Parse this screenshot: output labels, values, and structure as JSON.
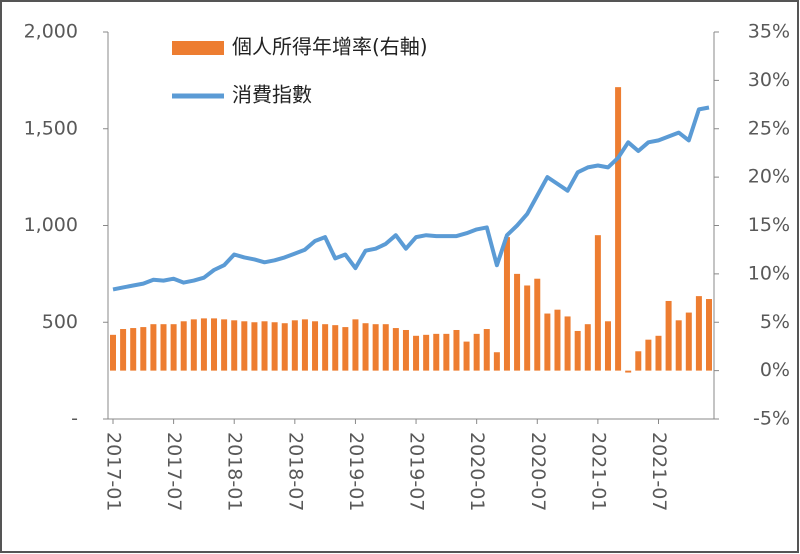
{
  "chart_data": {
    "type": "bar_line",
    "categories": [
      "2017-01",
      null,
      null,
      null,
      null,
      null,
      "2017-07",
      null,
      null,
      null,
      null,
      null,
      "2018-01",
      null,
      null,
      null,
      null,
      null,
      "2018-07",
      null,
      null,
      null,
      null,
      null,
      "2019-01",
      null,
      null,
      null,
      null,
      null,
      "2019-07",
      null,
      null,
      null,
      null,
      null,
      "2020-01",
      null,
      null,
      null,
      null,
      null,
      "2020-07",
      null,
      null,
      null,
      null,
      null,
      "2021-01",
      null,
      null,
      null,
      null,
      null,
      "2021-07",
      null,
      null,
      null,
      null,
      null
    ],
    "series": [
      {
        "name": "個人所得年增率(右軸)",
        "type": "bar",
        "axis": "y2",
        "color": "#ed7d31",
        "values": [
          3.7,
          4.3,
          4.4,
          4.5,
          4.8,
          4.8,
          4.8,
          5.1,
          5.3,
          5.4,
          5.4,
          5.3,
          5.2,
          5.1,
          5.0,
          5.1,
          5.0,
          4.9,
          5.2,
          5.3,
          5.1,
          4.8,
          4.7,
          4.5,
          5.3,
          4.9,
          4.8,
          4.8,
          4.4,
          4.2,
          3.6,
          3.7,
          3.8,
          3.8,
          4.2,
          3.0,
          3.8,
          4.3,
          1.9,
          13.8,
          10.0,
          8.8,
          9.5,
          5.9,
          6.3,
          5.6,
          4.1,
          4.8,
          14.0,
          5.1,
          29.3,
          -0.2,
          2.0,
          3.2,
          3.6,
          7.2,
          5.2,
          6.0,
          7.7,
          7.4
        ]
      },
      {
        "name": "消費指數",
        "type": "line",
        "axis": "y",
        "color": "#5b9bd5",
        "values": [
          670,
          680,
          690,
          700,
          720,
          715,
          725,
          705,
          715,
          730,
          770,
          795,
          850,
          835,
          825,
          810,
          820,
          835,
          855,
          875,
          920,
          940,
          830,
          850,
          780,
          870,
          880,
          905,
          950,
          880,
          940,
          950,
          945,
          945,
          945,
          960,
          980,
          990,
          795,
          950,
          1000,
          1060,
          1155,
          1250,
          1215,
          1180,
          1275,
          1300,
          1310,
          1300,
          1350,
          1430,
          1385,
          1430,
          1440,
          1460,
          1480,
          1440,
          1600,
          1610
        ]
      }
    ],
    "ylim": [
      0,
      2000
    ],
    "yticks": [
      {
        "value": 0,
        "label": "-"
      },
      500,
      {
        "value": 1000,
        "label": "1,000"
      },
      {
        "value": 1500,
        "label": "1,500"
      },
      {
        "value": 2000,
        "label": "2,000"
      }
    ],
    "y2lim": [
      -5,
      35
    ],
    "y2ticks": [
      {
        "value": -5,
        "label": "-5%"
      },
      {
        "value": 0,
        "label": "0%"
      },
      {
        "value": 5,
        "label": "5%"
      },
      {
        "value": 10,
        "label": "10%"
      },
      {
        "value": 15,
        "label": "15%"
      },
      {
        "value": 20,
        "label": "20%"
      },
      {
        "value": 25,
        "label": "25%"
      },
      {
        "value": 30,
        "label": "30%"
      },
      {
        "value": 35,
        "label": "35%"
      }
    ],
    "legend": "upper left"
  }
}
